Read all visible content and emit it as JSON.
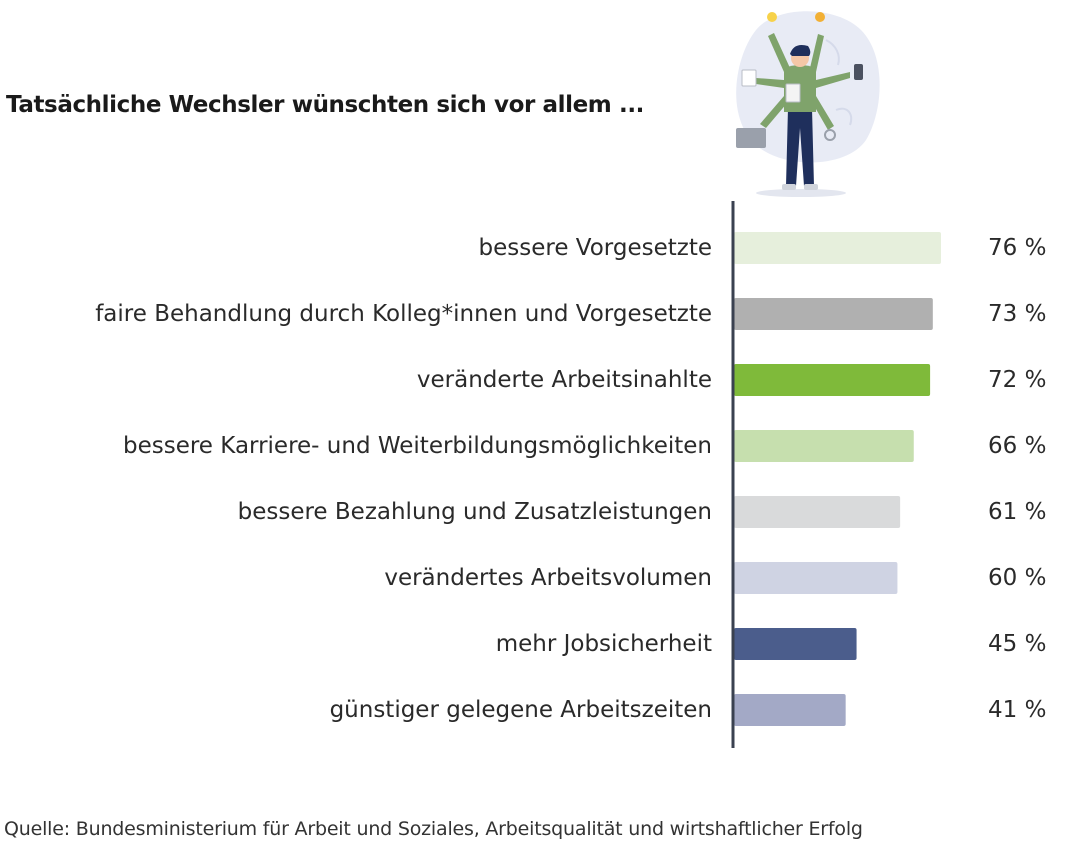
{
  "title": "Tatsächliche Wechsler wünschten sich vor allem ...",
  "source": "Quelle: Bundesministerium für Arbeit und Soziales, Arbeitsqualität und wirtshaftlicher Erfolg",
  "chart_data": {
    "type": "bar",
    "orientation": "horizontal",
    "categories": [
      "bessere Vorgesetzte",
      "faire Behandlung durch Kolleg*innen und Vorgesetzte",
      "veränderte Arbeitsinahlte",
      "bessere Karriere- und Weiterbildungsmöglichkeiten",
      "bessere Bezahlung und Zusatzleistungen",
      "verändertes Arbeitsvolumen",
      "mehr Jobsicherheit",
      "günstiger gelegene Arbeitszeiten"
    ],
    "values": [
      76,
      73,
      72,
      66,
      61,
      60,
      45,
      41
    ],
    "value_labels": [
      "76 %",
      "73 %",
      "72 %",
      "66 %",
      "61 %",
      "60 %",
      "45 %",
      "41 %"
    ],
    "colors": [
      "#e6efdc",
      "#b0b0b0",
      "#7fba3a",
      "#c6dfae",
      "#d9dadb",
      "#cfd3e3",
      "#4b5d8c",
      "#a3a9c6"
    ],
    "axis_color": "#3a4150",
    "xlim": [
      0,
      80
    ],
    "grid": false,
    "legend": "none"
  }
}
